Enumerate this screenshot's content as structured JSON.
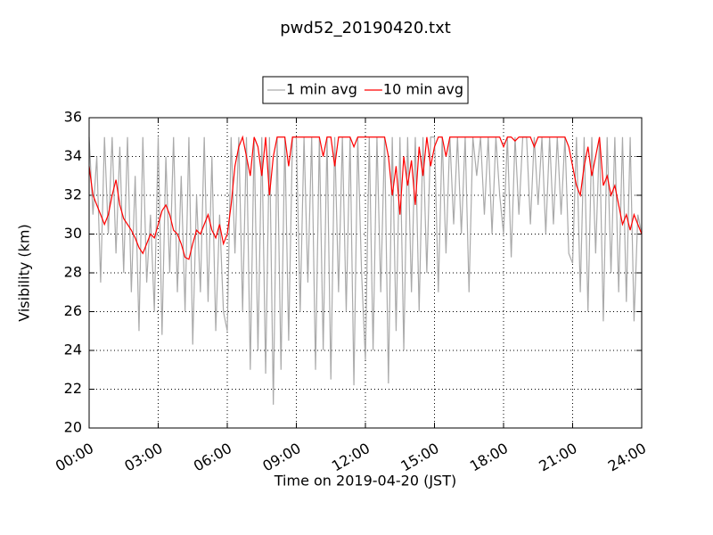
{
  "chart_data": {
    "type": "line",
    "title": "pwd52_20190420.txt",
    "xlabel": "Time on 2019-04-20 (JST)",
    "ylabel": "Visibility (km)",
    "legend": "upper center",
    "grid": true,
    "xlim": [
      0,
      1440
    ],
    "xticks": [
      {
        "value": 0,
        "label": "00:00"
      },
      {
        "value": 180,
        "label": "03:00"
      },
      {
        "value": 360,
        "label": "06:00"
      },
      {
        "value": 540,
        "label": "09:00"
      },
      {
        "value": 720,
        "label": "12:00"
      },
      {
        "value": 900,
        "label": "15:00"
      },
      {
        "value": 1080,
        "label": "18:00"
      },
      {
        "value": 1260,
        "label": "21:00"
      },
      {
        "value": 1440,
        "label": "24:00"
      }
    ],
    "ylim": [
      20,
      36
    ],
    "yticks": [
      20,
      22,
      24,
      26,
      28,
      30,
      32,
      34,
      36
    ],
    "x": [
      0,
      10,
      20,
      30,
      40,
      50,
      60,
      70,
      80,
      90,
      100,
      110,
      120,
      130,
      140,
      150,
      160,
      170,
      180,
      190,
      200,
      210,
      220,
      230,
      240,
      250,
      260,
      270,
      280,
      290,
      300,
      310,
      320,
      330,
      340,
      350,
      360,
      370,
      380,
      390,
      400,
      410,
      420,
      430,
      440,
      450,
      460,
      470,
      480,
      490,
      500,
      510,
      520,
      530,
      540,
      550,
      560,
      570,
      580,
      590,
      600,
      610,
      620,
      630,
      640,
      650,
      660,
      670,
      680,
      690,
      700,
      710,
      720,
      730,
      740,
      750,
      760,
      770,
      780,
      790,
      800,
      810,
      820,
      830,
      840,
      850,
      860,
      870,
      880,
      890,
      900,
      910,
      920,
      930,
      940,
      950,
      960,
      970,
      980,
      990,
      1000,
      1010,
      1020,
      1030,
      1040,
      1050,
      1060,
      1070,
      1080,
      1090,
      1100,
      1110,
      1120,
      1130,
      1140,
      1150,
      1160,
      1170,
      1180,
      1190,
      1200,
      1210,
      1220,
      1230,
      1240,
      1250,
      1260,
      1270,
      1280,
      1290,
      1300,
      1310,
      1320,
      1330,
      1340,
      1350,
      1360,
      1370,
      1380,
      1390,
      1400,
      1410,
      1420,
      1430,
      1440
    ],
    "series": [
      {
        "name": "1 min avg",
        "color": "#aaaaaa",
        "values": [
          35,
          31,
          34,
          27.5,
          35,
          30,
          35,
          29,
          34.5,
          28,
          35,
          27,
          33,
          25,
          35,
          27.5,
          31,
          26,
          35,
          24.8,
          34,
          28,
          35,
          27,
          33,
          26,
          35,
          24.3,
          32,
          27,
          35,
          26.5,
          34,
          25,
          31,
          26,
          25,
          35,
          29,
          35,
          26,
          35,
          23,
          35,
          24,
          35,
          22.8,
          35,
          21.2,
          35,
          23,
          35,
          24.5,
          35,
          35,
          26,
          35,
          27.5,
          35,
          23,
          35,
          24,
          35,
          22.5,
          35,
          27,
          35,
          26,
          35,
          22.2,
          35,
          28,
          23.5,
          35,
          24,
          35,
          27,
          35,
          22.3,
          35,
          25,
          35,
          24,
          35,
          27,
          35,
          26,
          35,
          28,
          35,
          35,
          27,
          35,
          29,
          35,
          30.5,
          35,
          30,
          35,
          27,
          35,
          33,
          35,
          31,
          35,
          30,
          35,
          32,
          30,
          35,
          28.8,
          35,
          31,
          35,
          35,
          30.5,
          35,
          31.5,
          35,
          30,
          35,
          30.5,
          35,
          31,
          35,
          29,
          28.5,
          35,
          27,
          35,
          26,
          35,
          29,
          35,
          25.5,
          35,
          28,
          35,
          27,
          35,
          26.5,
          35,
          25.5,
          31,
          30
        ]
      },
      {
        "name": "10 min avg",
        "color": "#ff0000",
        "values": [
          33.5,
          32,
          31.5,
          31,
          30.5,
          31,
          32,
          32.8,
          31.5,
          30.8,
          30.5,
          30.2,
          29.8,
          29.3,
          29,
          29.5,
          30,
          29.8,
          30.5,
          31.2,
          31.5,
          31,
          30.2,
          30,
          29.5,
          28.8,
          28.7,
          29.5,
          30.2,
          30,
          30.5,
          31,
          30.2,
          29.8,
          30.5,
          29.5,
          30,
          31.5,
          33.5,
          34.5,
          35,
          34,
          33,
          35,
          34.5,
          33,
          35,
          32,
          34,
          35,
          35,
          35,
          33.5,
          35,
          35,
          35,
          35,
          35,
          35,
          35,
          35,
          34,
          35,
          35,
          33.5,
          35,
          35,
          35,
          35,
          34.5,
          35,
          35,
          35,
          35,
          35,
          35,
          35,
          35,
          34,
          32,
          33.5,
          31,
          34,
          32.5,
          33.8,
          31.5,
          34.5,
          33,
          35,
          33.5,
          34.5,
          35,
          35,
          34,
          35,
          35,
          35,
          35,
          35,
          35,
          35,
          35,
          35,
          35,
          35,
          35,
          35,
          35,
          34.5,
          35,
          35,
          34.8,
          35,
          35,
          35,
          35,
          34.5,
          35,
          35,
          35,
          35,
          35,
          35,
          35,
          35,
          34.5,
          33.5,
          32.5,
          32,
          33.5,
          34.5,
          33,
          34,
          35,
          32.5,
          33,
          32,
          32.5,
          31.5,
          30.5,
          31,
          30.2,
          31,
          30.5,
          30
        ]
      }
    ]
  }
}
